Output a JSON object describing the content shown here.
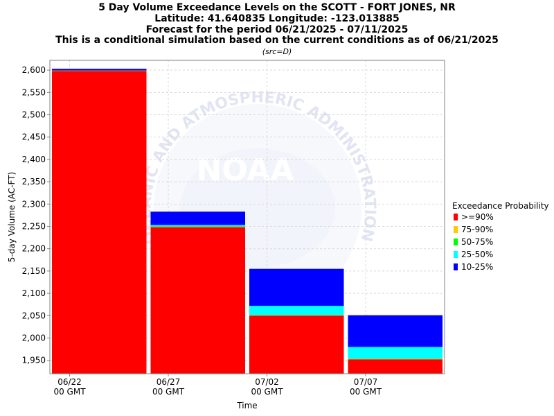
{
  "header": {
    "title_lines": [
      "5 Day Volume Exceedance Levels on the SCOTT - FORT JONES, NR",
      "Latitude: 41.640835 Longitude: -123.013885",
      "Forecast for the period 06/21/2025 - 07/11/2025",
      "This is a conditional simulation based on the current conditions as of 06/21/2025"
    ],
    "source_note": "(src=D)"
  },
  "watermark": {
    "arc_text": "OCEANIC AND ATMOSPHERIC ADMINISTRATION",
    "logo_text": "NOAA"
  },
  "chart_data": {
    "type": "bar",
    "stacked": true,
    "xlabel": "Time",
    "ylabel": "5-day Volume (AC-FT)",
    "ylim": [
      1920,
      2622
    ],
    "yticks": [
      1950,
      2000,
      2050,
      2100,
      2150,
      2200,
      2250,
      2300,
      2350,
      2400,
      2450,
      2500,
      2550,
      2600
    ],
    "ytick_labels": [
      "1,950",
      "2,000",
      "2,050",
      "2,100",
      "2,150",
      "2,200",
      "2,250",
      "2,300",
      "2,350",
      "2,400",
      "2,450",
      "2,500",
      "2,550",
      "2,600"
    ],
    "x_axis": {
      "type": "date",
      "start": "06/21",
      "end": "07/11"
    },
    "xticks": [
      {
        "date": "06/22",
        "line1": "06/22",
        "line2": "00 GMT"
      },
      {
        "date": "06/27",
        "line1": "06/27",
        "line2": "00 GMT"
      },
      {
        "date": "07/02",
        "line1": "07/02",
        "line2": "00 GMT"
      },
      {
        "date": "07/07",
        "line1": "07/07",
        "line2": "00 GMT"
      }
    ],
    "grid": true,
    "legend": {
      "title": "Exceedance Probability",
      "position": "right",
      "entries": [
        {
          "label": ">=90%",
          "color": "#ff0000"
        },
        {
          "label": "75-90%",
          "color": "#ffc800"
        },
        {
          "label": "50-75%",
          "color": "#00ff00"
        },
        {
          "label": "25-50%",
          "color": "#00ffff"
        },
        {
          "label": "10-25%",
          "color": "#0000ff"
        }
      ]
    },
    "bars": [
      {
        "start": "06/21",
        "end": "06/26",
        "levels": {
          ">=90%": 2598,
          "75-90%": 2599,
          "50-75%": 2599,
          "25-50%": 2599,
          "10-25%": 2603
        }
      },
      {
        "start": "06/26",
        "end": "07/01",
        "levels": {
          ">=90%": 2248,
          "75-90%": 2249,
          "50-75%": 2250,
          "25-50%": 2253,
          "10-25%": 2283
        }
      },
      {
        "start": "07/01",
        "end": "07/06",
        "levels": {
          ">=90%": 2050,
          "75-90%": 2051,
          "50-75%": 2051,
          "25-50%": 2072,
          "10-25%": 2155
        }
      },
      {
        "start": "07/06",
        "end": "07/11",
        "levels": {
          ">=90%": 1952,
          "75-90%": 1953,
          "50-75%": 1953,
          "25-50%": 1980,
          "10-25%": 2051
        }
      }
    ]
  }
}
